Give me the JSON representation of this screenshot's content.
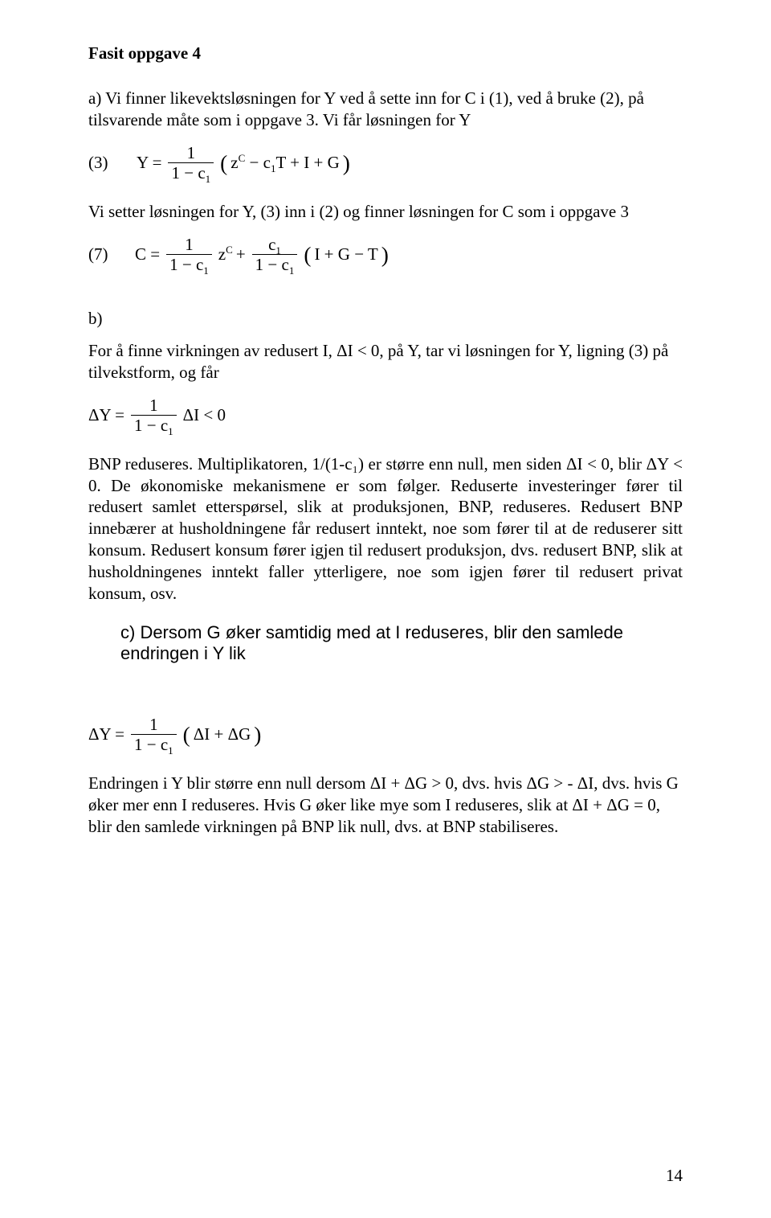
{
  "title": "Fasit oppgave 4",
  "para_a": "a) Vi finner likevektsløsningen for Y ved å sette inn for C i (1), ved å bruke (2), på tilsvarende måte som i oppgave 3. Vi får løsningen for Y",
  "eq3_label": "(3)",
  "eq3_lhs": "Y =",
  "frac_num_1": "1",
  "frac_den_1mc1_pre": "1 − c",
  "frac_den_1mc1_sub": "1",
  "eq3_inner_pre": "z",
  "eq3_inner_sup": "C",
  "eq3_inner_mid1": " − c",
  "eq3_inner_sub1": "1",
  "eq3_inner_rest": "T + I + G",
  "para_setter": "Vi setter løsningen for Y, (3) inn i (2) og finner løsningen for C som i oppgave 3",
  "eq7_label": "(7)",
  "eq7_lhs": "C =",
  "eq7_z_pre": " z",
  "eq7_z_sup": "C",
  "eq7_plus": " +",
  "eq7_frac2_num_pre": "c",
  "eq7_frac2_num_sub": "1",
  "eq7_paren_inner": "I + G − T",
  "subhead_b": "b)",
  "para_b1": "For å finne virkningen av redusert I,  ΔI < 0, på Y, tar vi løsningen for Y, ligning (3) på tilvekstform, og får",
  "eqDY_lhs": "ΔY =",
  "eqDY_rhs": " ΔI < 0",
  "para_b2": "BNP reduseres. Multiplikatoren, 1/(1-c₁) er større enn null, men siden ΔI < 0, blir ΔY < 0. De økonomiske mekanismene er som følger. Reduserte investeringer fører til redusert samlet etterspørsel, slik at produksjonen, BNP, reduseres. Redusert BNP innebærer at husholdningene får redusert inntekt, noe som fører til at de reduserer sitt konsum. Redusert konsum fører igjen til redusert produksjon, dvs. redusert BNP, slik at husholdningenes inntekt faller ytterligere, noe som igjen fører til redusert privat konsum, osv.",
  "subhead_c": "c)  Dersom G øker samtidig med at I reduseres, blir den samlede endringen i Y lik",
  "eqDY2_lhs": "ΔY =",
  "eqDY2_inner": "ΔI + ΔG",
  "para_c1": " Endringen i Y blir større enn null dersom ΔI + ΔG > 0, dvs. hvis ΔG > - ΔI, dvs. hvis G øker mer enn I reduseres. Hvis G øker like mye som I reduseres, slik at ΔI + ΔG = 0, blir den samlede virkningen på BNP lik null, dvs. at BNP stabiliseres.",
  "page_number": "14",
  "colors": {
    "bg": "#ffffff",
    "text": "#000000",
    "rule": "#000000"
  },
  "typography": {
    "body_fontsize_pt": 16,
    "title_fontsize_pt": 16,
    "family": "Times New Roman"
  }
}
